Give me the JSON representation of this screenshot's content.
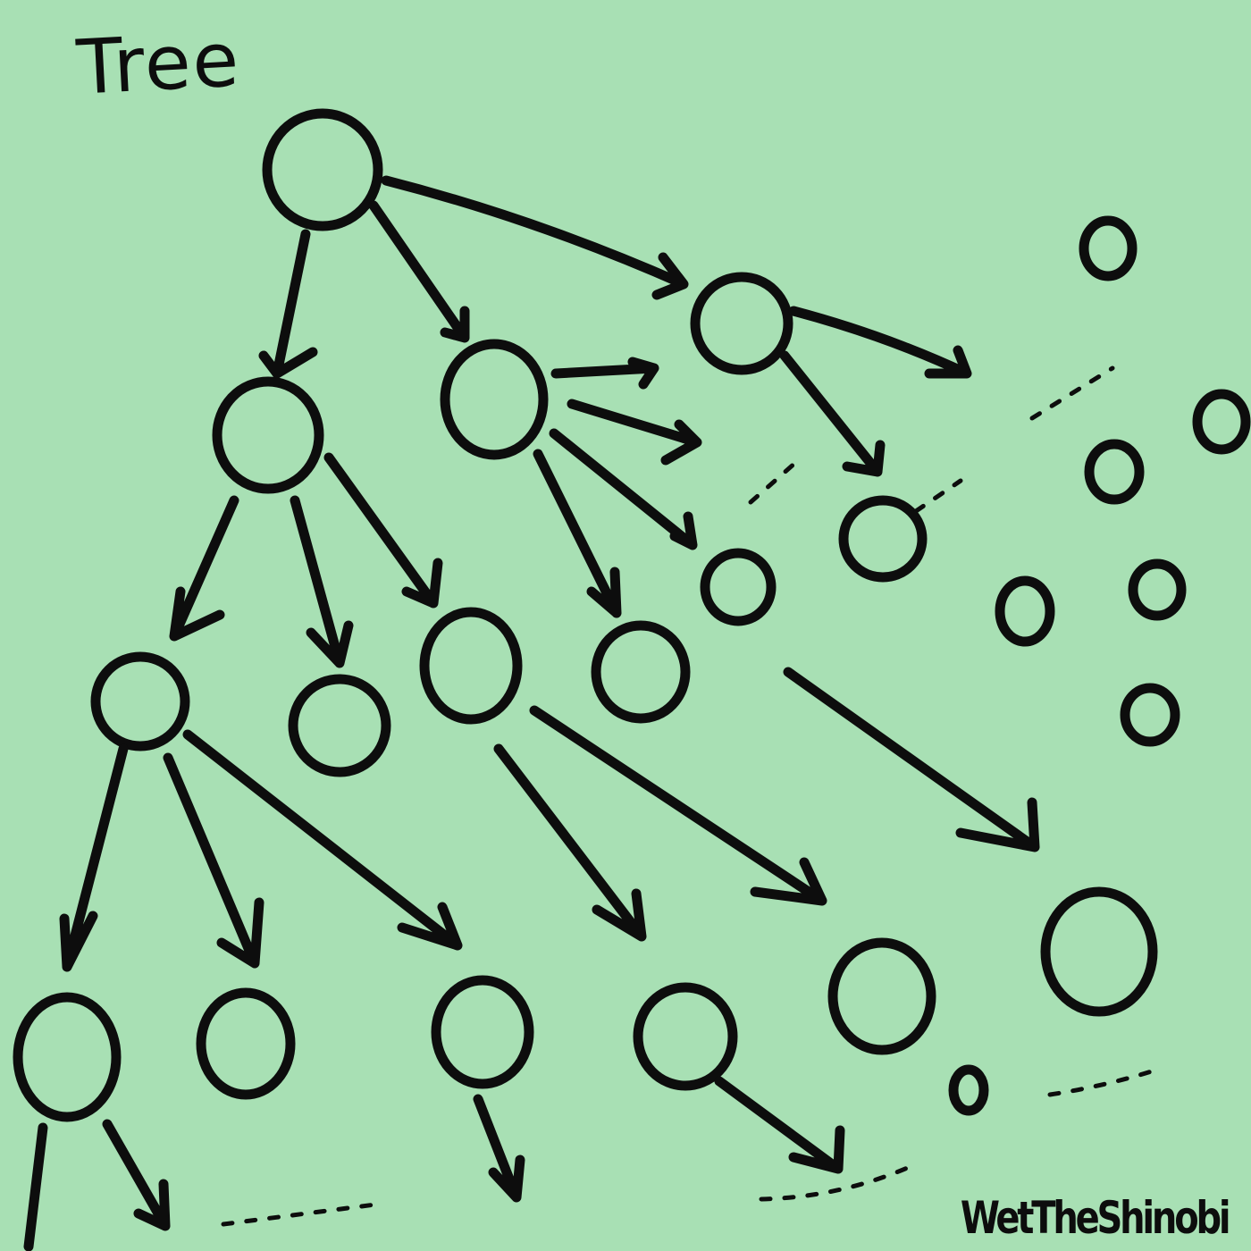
{
  "title": "Tree",
  "signature": "WetTheShinobi",
  "colors": {
    "background": "#a8e0b4",
    "ink": "#0d0d0d"
  }
}
